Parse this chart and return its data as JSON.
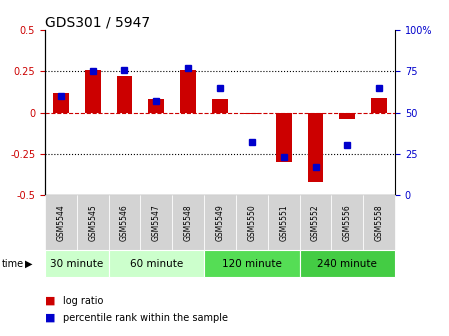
{
  "title": "GDS301 / 5947",
  "samples": [
    "GSM5544",
    "GSM5545",
    "GSM5546",
    "GSM5547",
    "GSM5548",
    "GSM5549",
    "GSM5550",
    "GSM5551",
    "GSM5552",
    "GSM5556",
    "GSM5558"
  ],
  "log_ratio": [
    0.12,
    0.26,
    0.22,
    0.08,
    0.26,
    0.08,
    -0.01,
    -0.3,
    -0.42,
    -0.04,
    0.09
  ],
  "percentile": [
    60,
    75,
    76,
    57,
    77,
    65,
    32,
    23,
    17,
    30,
    65
  ],
  "bar_color": "#cc0000",
  "dot_color": "#0000cc",
  "ylim_left": [
    -0.5,
    0.5
  ],
  "ylim_right": [
    0,
    100
  ],
  "yticks_left": [
    -0.5,
    -0.25,
    0,
    0.25,
    0.5
  ],
  "yticks_right": [
    0,
    25,
    50,
    75,
    100
  ],
  "ytick_labels_left": [
    "-0.5",
    "-0.25",
    "0",
    "0.25",
    "0.5"
  ],
  "ytick_labels_right": [
    "0",
    "25",
    "50",
    "75",
    "100%"
  ],
  "title_fontsize": 10,
  "tick_fontsize": 7,
  "bar_width": 0.5,
  "group_label_fontsize": 7.5,
  "sample_fontsize": 5.5,
  "group_defs": [
    {
      "label": "30 minute",
      "start": 0,
      "end": 2,
      "color": "#ccffcc"
    },
    {
      "label": "60 minute",
      "start": 2,
      "end": 5,
      "color": "#ccffcc"
    },
    {
      "label": "120 minute",
      "start": 5,
      "end": 8,
      "color": "#55dd55"
    },
    {
      "label": "240 minute",
      "start": 8,
      "end": 11,
      "color": "#44cc44"
    }
  ]
}
